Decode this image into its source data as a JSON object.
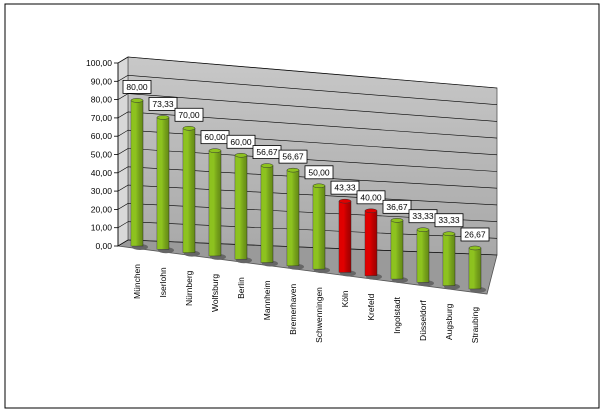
{
  "chart_data": {
    "type": "bar3d",
    "categories": [
      "München",
      "Iserlohn",
      "Nürnberg",
      "Wolfsburg",
      "Berlin",
      "Mannheim",
      "Bremerhaven",
      "Schwenningen",
      "Köln",
      "Krefeld",
      "Ingolstadt",
      "Düsseldorf",
      "Augsburg",
      "Straubing"
    ],
    "values": [
      80,
      73.33,
      70,
      60,
      60,
      56.67,
      56.67,
      50,
      43.33,
      40,
      36.67,
      33.33,
      33.33,
      26.67
    ],
    "value_labels": [
      "80,00",
      "73,33",
      "70,00",
      "60,00",
      "60,00",
      "56,67",
      "56,67",
      "50,00",
      "43,33",
      "40,00",
      "36,67",
      "33,33",
      "33,33",
      "26,67"
    ],
    "colors": [
      "#8dc21f",
      "#8dc21f",
      "#8dc21f",
      "#8dc21f",
      "#8dc21f",
      "#8dc21f",
      "#8dc21f",
      "#8dc21f",
      "#e00000",
      "#e00000",
      "#8dc21f",
      "#8dc21f",
      "#8dc21f",
      "#8dc21f"
    ],
    "ylim": [
      0,
      100
    ],
    "yticks": [
      {
        "value": 0,
        "label": "0,00"
      },
      {
        "value": 10,
        "label": "10,00"
      },
      {
        "value": 20,
        "label": "20,00"
      },
      {
        "value": 30,
        "label": "30,00"
      },
      {
        "value": 40,
        "label": "40,00"
      },
      {
        "value": 50,
        "label": "50,00"
      },
      {
        "value": 60,
        "label": "60,00"
      },
      {
        "value": 70,
        "label": "70,00"
      },
      {
        "value": 80,
        "label": "80,00"
      },
      {
        "value": 90,
        "label": "90,00"
      },
      {
        "value": 100,
        "label": "100,00"
      }
    ],
    "grid": true
  }
}
